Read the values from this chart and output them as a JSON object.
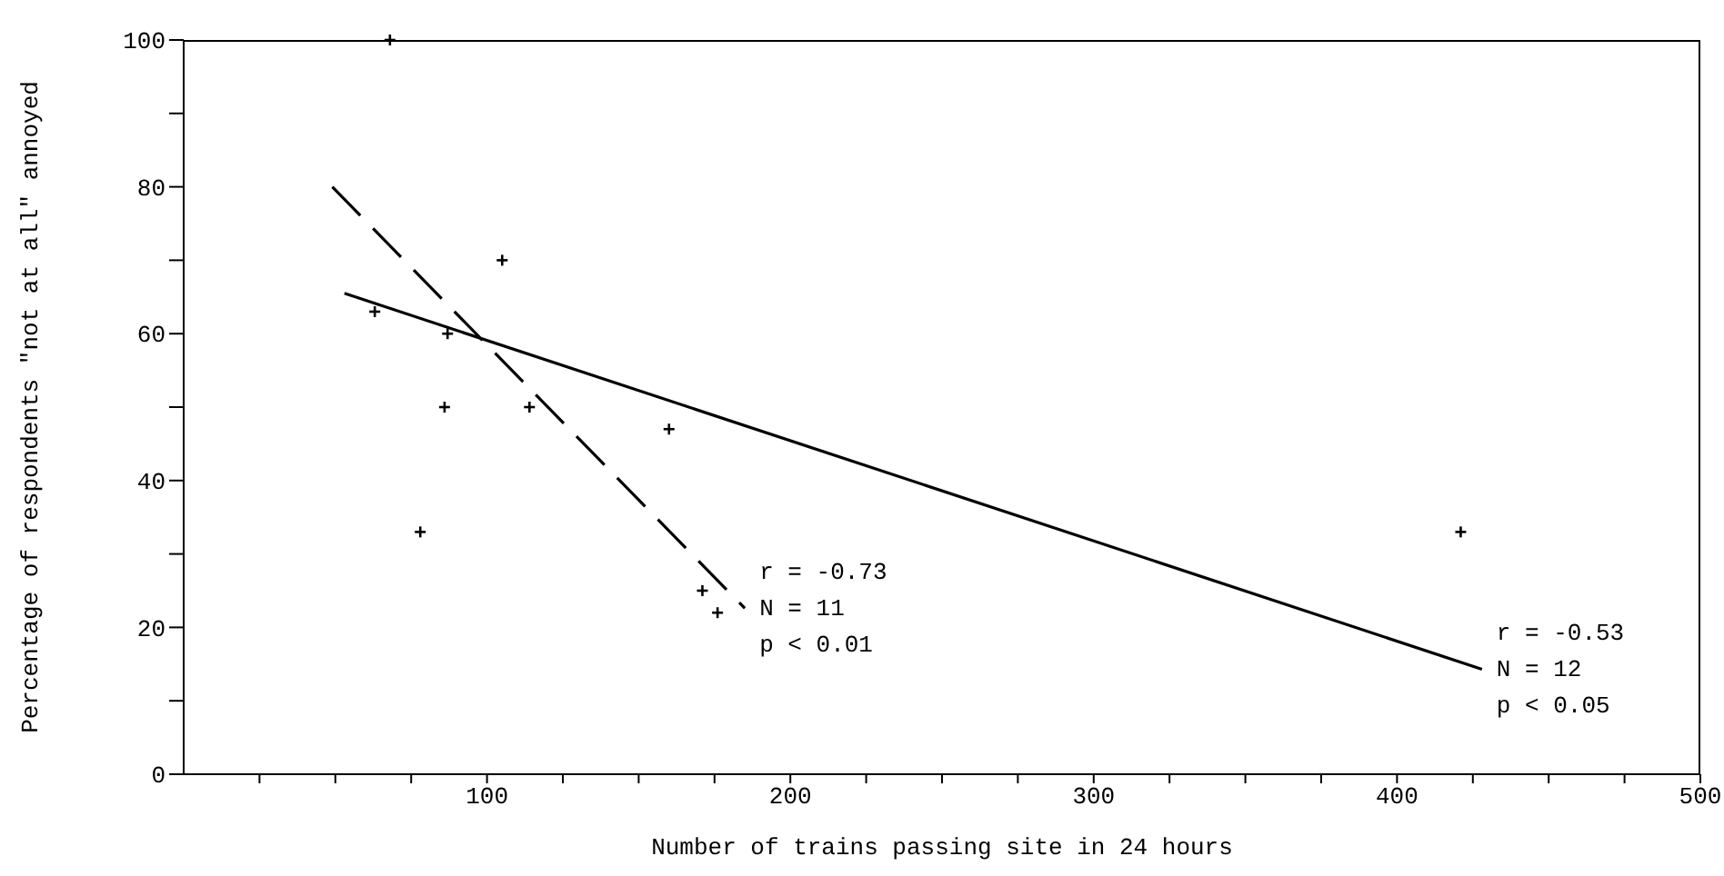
{
  "chart_data": {
    "type": "scatter",
    "xlabel": "Number of trains passing site in 24 hours",
    "ylabel": "Percentage of respondents \"not at all\" annoyed",
    "xlim": [
      0,
      500
    ],
    "xticks": [
      {
        "value": 25,
        "label": null
      },
      {
        "value": 50,
        "label": null
      },
      {
        "value": 75,
        "label": null
      },
      100,
      {
        "value": 125,
        "label": null
      },
      {
        "value": 150,
        "label": null
      },
      {
        "value": 175,
        "label": null
      },
      200,
      {
        "value": 225,
        "label": null
      },
      {
        "value": 250,
        "label": null
      },
      {
        "value": 275,
        "label": null
      },
      300,
      {
        "value": 325,
        "label": null
      },
      {
        "value": 350,
        "label": null
      },
      {
        "value": 375,
        "label": null
      },
      400,
      {
        "value": 425,
        "label": null
      },
      {
        "value": 450,
        "label": null
      },
      {
        "value": 475,
        "label": null
      },
      500
    ],
    "ylim": [
      0,
      100
    ],
    "yticks": [
      0,
      {
        "value": 10,
        "label": null
      },
      20,
      {
        "value": 30,
        "label": null
      },
      40,
      {
        "value": 50,
        "label": null
      },
      60,
      {
        "value": 70,
        "label": null
      },
      80,
      {
        "value": 90,
        "label": null
      },
      100
    ],
    "grid": false,
    "legend": false,
    "series": [
      {
        "type": "scatter",
        "color": "#000000",
        "marker": "cross",
        "x": [
          68,
          63,
          105,
          87,
          86,
          114,
          160,
          78,
          171,
          176,
          421
        ],
        "values": [
          100,
          63,
          70,
          60,
          50,
          50,
          47,
          33,
          25,
          22,
          33
        ]
      },
      {
        "type": "line",
        "color": "#000000",
        "line_style": "dashed",
        "marker": "none",
        "x": [
          49,
          185
        ],
        "values": [
          80,
          22.6
        ]
      },
      {
        "type": "line",
        "color": "#000000",
        "line_style": "solid",
        "marker": "none",
        "x": [
          53,
          428
        ],
        "values": [
          65.5,
          14.3
        ]
      }
    ],
    "annotations": [
      {
        "text": "r = -0.73\nN = 11\np < 0.01",
        "x": 185,
        "y": 22.6
      },
      {
        "text": "r = -0.53\nN = 12\np < 0.05",
        "x": 428,
        "y": 14.3
      }
    ]
  }
}
